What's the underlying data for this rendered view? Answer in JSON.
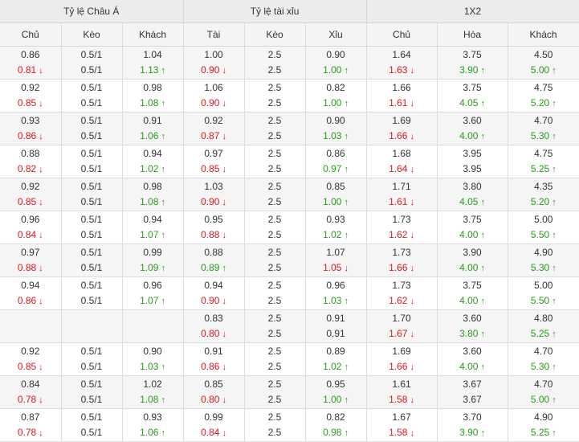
{
  "header": {
    "groups": [
      "Tỷ lệ Châu Á",
      "Tỷ lệ tài xỉu",
      "1X2"
    ],
    "columns": [
      "Chủ",
      "Kèo",
      "Khách",
      "Tài",
      "Kèo",
      "Xỉu",
      "Chủ",
      "Hòa",
      "Khách"
    ]
  },
  "colors": {
    "down": "#e0161b",
    "up": "#2a9b1c",
    "neutral": "#333333"
  },
  "icons": {
    "down": "arrow-down-icon",
    "up": "arrow-up-icon"
  },
  "rows": [
    [
      [
        "0.86",
        "0.81",
        "down"
      ],
      [
        "0.5/1",
        "0.5/1",
        ""
      ],
      [
        "1.04",
        "1.13",
        "up"
      ],
      [
        "1.00",
        "0.90",
        "down"
      ],
      [
        "2.5",
        "2.5",
        ""
      ],
      [
        "0.90",
        "1.00",
        "up"
      ],
      [
        "1.64",
        "1.63",
        "down"
      ],
      [
        "3.75",
        "3.90",
        "up"
      ],
      [
        "4.50",
        "5.00",
        "up"
      ]
    ],
    [
      [
        "0.92",
        "0.85",
        "down"
      ],
      [
        "0.5/1",
        "0.5/1",
        ""
      ],
      [
        "0.98",
        "1.08",
        "up"
      ],
      [
        "1.06",
        "0.90",
        "down"
      ],
      [
        "2.5",
        "2.5",
        ""
      ],
      [
        "0.82",
        "1.00",
        "up"
      ],
      [
        "1.66",
        "1.61",
        "down"
      ],
      [
        "3.75",
        "4.05",
        "up"
      ],
      [
        "4.75",
        "5.20",
        "up"
      ]
    ],
    [
      [
        "0.93",
        "0.86",
        "down"
      ],
      [
        "0.5/1",
        "0.5/1",
        ""
      ],
      [
        "0.91",
        "1.06",
        "up"
      ],
      [
        "0.92",
        "0.87",
        "down"
      ],
      [
        "2.5",
        "2.5",
        ""
      ],
      [
        "0.90",
        "1.03",
        "up"
      ],
      [
        "1.69",
        "1.66",
        "down"
      ],
      [
        "3.60",
        "4.00",
        "up"
      ],
      [
        "4.70",
        "5.30",
        "up"
      ]
    ],
    [
      [
        "0.88",
        "0.82",
        "down"
      ],
      [
        "0.5/1",
        "0.5/1",
        ""
      ],
      [
        "0.94",
        "1.02",
        "up"
      ],
      [
        "0.97",
        "0.85",
        "down"
      ],
      [
        "2.5",
        "2.5",
        ""
      ],
      [
        "0.86",
        "0.97",
        "up"
      ],
      [
        "1.68",
        "1.64",
        "down"
      ],
      [
        "3.95",
        "3.95",
        ""
      ],
      [
        "4.75",
        "5.25",
        "up"
      ]
    ],
    [
      [
        "0.92",
        "0.85",
        "down"
      ],
      [
        "0.5/1",
        "0.5/1",
        ""
      ],
      [
        "0.98",
        "1.08",
        "up"
      ],
      [
        "1.03",
        "0.90",
        "down"
      ],
      [
        "2.5",
        "2.5",
        ""
      ],
      [
        "0.85",
        "1.00",
        "up"
      ],
      [
        "1.71",
        "1.61",
        "down"
      ],
      [
        "3.80",
        "4.05",
        "up"
      ],
      [
        "4.35",
        "5.20",
        "up"
      ]
    ],
    [
      [
        "0.96",
        "0.84",
        "down"
      ],
      [
        "0.5/1",
        "0.5/1",
        ""
      ],
      [
        "0.94",
        "1.07",
        "up"
      ],
      [
        "0.95",
        "0.88",
        "down"
      ],
      [
        "2.5",
        "2.5",
        ""
      ],
      [
        "0.93",
        "1.02",
        "up"
      ],
      [
        "1.73",
        "1.62",
        "down"
      ],
      [
        "3.75",
        "4.00",
        "up"
      ],
      [
        "5.00",
        "5.50",
        "up"
      ]
    ],
    [
      [
        "0.97",
        "0.88",
        "down"
      ],
      [
        "0.5/1",
        "0.5/1",
        ""
      ],
      [
        "0.99",
        "1.09",
        "up"
      ],
      [
        "0.88",
        "0.89",
        "up"
      ],
      [
        "2.5",
        "2.5",
        ""
      ],
      [
        "1.07",
        "1.05",
        "down"
      ],
      [
        "1.73",
        "1.66",
        "down"
      ],
      [
        "3.90",
        "4.00",
        "up"
      ],
      [
        "4.90",
        "5.30",
        "up"
      ]
    ],
    [
      [
        "0.94",
        "0.86",
        "down"
      ],
      [
        "0.5/1",
        "0.5/1",
        ""
      ],
      [
        "0.96",
        "1.07",
        "up"
      ],
      [
        "0.94",
        "0.90",
        "down"
      ],
      [
        "2.5",
        "2.5",
        ""
      ],
      [
        "0.96",
        "1.03",
        "up"
      ],
      [
        "1.73",
        "1.62",
        "down"
      ],
      [
        "3.75",
        "4.00",
        "up"
      ],
      [
        "5.00",
        "5.50",
        "up"
      ]
    ],
    [
      [
        "",
        "",
        ""
      ],
      [
        "",
        "",
        ""
      ],
      [
        "",
        "",
        ""
      ],
      [
        "0.83",
        "0.80",
        "down"
      ],
      [
        "2.5",
        "2.5",
        ""
      ],
      [
        "0.91",
        "0.91",
        ""
      ],
      [
        "1.70",
        "1.67",
        "down"
      ],
      [
        "3.60",
        "3.80",
        "up"
      ],
      [
        "4.80",
        "5.25",
        "up"
      ]
    ],
    [
      [
        "0.92",
        "0.85",
        "down"
      ],
      [
        "0.5/1",
        "0.5/1",
        ""
      ],
      [
        "0.90",
        "1.03",
        "up"
      ],
      [
        "0.91",
        "0.86",
        "down"
      ],
      [
        "2.5",
        "2.5",
        ""
      ],
      [
        "0.89",
        "1.02",
        "up"
      ],
      [
        "1.69",
        "1.66",
        "down"
      ],
      [
        "3.60",
        "4.00",
        "up"
      ],
      [
        "4.70",
        "5.30",
        "up"
      ]
    ],
    [
      [
        "0.84",
        "0.78",
        "down"
      ],
      [
        "0.5/1",
        "0.5/1",
        ""
      ],
      [
        "1.02",
        "1.08",
        "up"
      ],
      [
        "0.85",
        "0.80",
        "down"
      ],
      [
        "2.5",
        "2.5",
        ""
      ],
      [
        "0.95",
        "1.00",
        "up"
      ],
      [
        "1.61",
        "1.58",
        "down"
      ],
      [
        "3.67",
        "3.67",
        ""
      ],
      [
        "4.70",
        "5.00",
        "up"
      ]
    ],
    [
      [
        "0.87",
        "0.78",
        "down"
      ],
      [
        "0.5/1",
        "0.5/1",
        ""
      ],
      [
        "0.93",
        "1.06",
        "up"
      ],
      [
        "0.99",
        "0.84",
        "down"
      ],
      [
        "2.5",
        "2.5",
        ""
      ],
      [
        "0.82",
        "0.98",
        "up"
      ],
      [
        "1.67",
        "1.58",
        "down"
      ],
      [
        "3.70",
        "3.90",
        "up"
      ],
      [
        "4.90",
        "5.25",
        "up"
      ]
    ]
  ]
}
